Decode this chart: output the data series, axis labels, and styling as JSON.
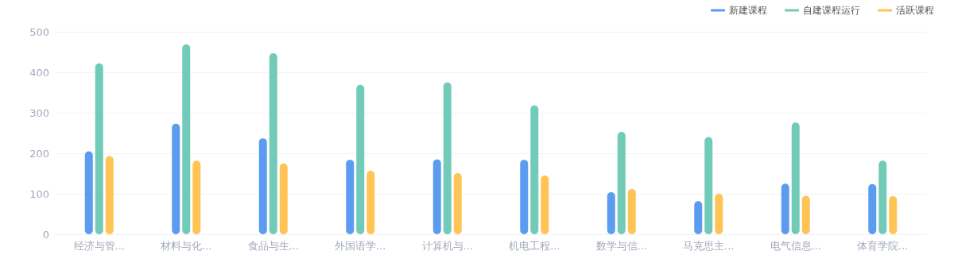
{
  "chart_data": {
    "type": "bar",
    "categories": [
      "经济与管...",
      "材料与化...",
      "食品与生...",
      "外国语学...",
      "计算机与...",
      "机电工程...",
      "数学与信...",
      "马克思主...",
      "电气信息...",
      "体育学院..."
    ],
    "series": [
      {
        "name": "新建课程",
        "color": "#5b9cf0",
        "values": [
          205,
          273,
          237,
          184,
          185,
          184,
          104,
          82,
          125,
          124
        ]
      },
      {
        "name": "自建课程运行",
        "color": "#72cbb8",
        "values": [
          422,
          469,
          447,
          369,
          375,
          318,
          253,
          240,
          276,
          182
        ]
      },
      {
        "name": "活跃课程",
        "color": "#ffc456",
        "values": [
          193,
          182,
          175,
          157,
          151,
          145,
          112,
          100,
          95,
          94
        ]
      }
    ],
    "ylim": [
      0,
      500
    ],
    "yticks": [
      0,
      100,
      200,
      300,
      400,
      500
    ],
    "grid": "y",
    "legend": "top right"
  }
}
